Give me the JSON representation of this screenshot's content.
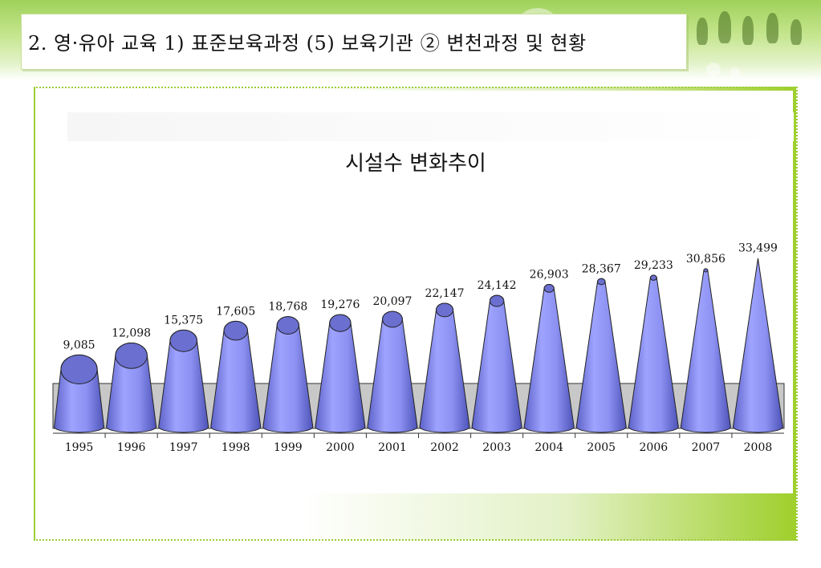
{
  "header": {
    "title": "2. 영·유아 교육  1) 표준보육과정  (5) 보육기관  ② 변천과정 및 현황"
  },
  "colors": {
    "cone_fill": "#8a8ff0",
    "cone_top": "#6a6fd0",
    "floor": "#c8c8c8",
    "accent_green": "#9ccc3a"
  },
  "chart_data": {
    "type": "bar",
    "shape": "cone",
    "title": "시설수 변화추이",
    "xlabel": "",
    "ylabel": "",
    "categories": [
      "1995",
      "1996",
      "1997",
      "1998",
      "1999",
      "2000",
      "2001",
      "2002",
      "2003",
      "2004",
      "2005",
      "2006",
      "2007",
      "2008"
    ],
    "values": [
      9085,
      12098,
      15375,
      17605,
      18768,
      19276,
      20097,
      22147,
      24142,
      26903,
      28367,
      29233,
      30856,
      33499
    ],
    "value_labels": [
      "9,085",
      "12,098",
      "15,375",
      "17,605",
      "18,768",
      "19,276",
      "20,097",
      "22,147",
      "24,142",
      "26,903",
      "28,367",
      "29,233",
      "30,856",
      "33,499"
    ],
    "grid": false,
    "legend": "none"
  }
}
